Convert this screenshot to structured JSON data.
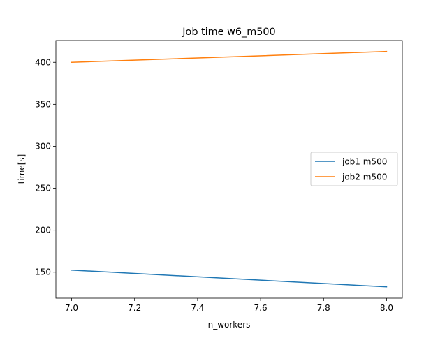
{
  "chart_data": {
    "type": "line",
    "title": "Job time w6_m500",
    "xlabel": "n_workers",
    "ylabel": "time[s]",
    "x": [
      7.0,
      8.0
    ],
    "xlim": [
      6.95,
      8.05
    ],
    "ylim": [
      119,
      426
    ],
    "xticks": [
      7.0,
      7.2,
      7.4,
      7.6,
      7.8,
      8.0
    ],
    "xtick_labels": [
      "7.0",
      "7.2",
      "7.4",
      "7.6",
      "7.8",
      "8.0"
    ],
    "yticks": [
      150,
      200,
      250,
      300,
      350,
      400
    ],
    "ytick_labels": [
      "150",
      "200",
      "250",
      "300",
      "350",
      "400"
    ],
    "grid": false,
    "legend_position": "center-right",
    "series": [
      {
        "name": "job1 m500",
        "color": "#1f77b4",
        "values": [
          152.5,
          132.5
        ]
      },
      {
        "name": "job2 m500",
        "color": "#ff7f0e",
        "values": [
          400,
          413
        ]
      }
    ]
  }
}
